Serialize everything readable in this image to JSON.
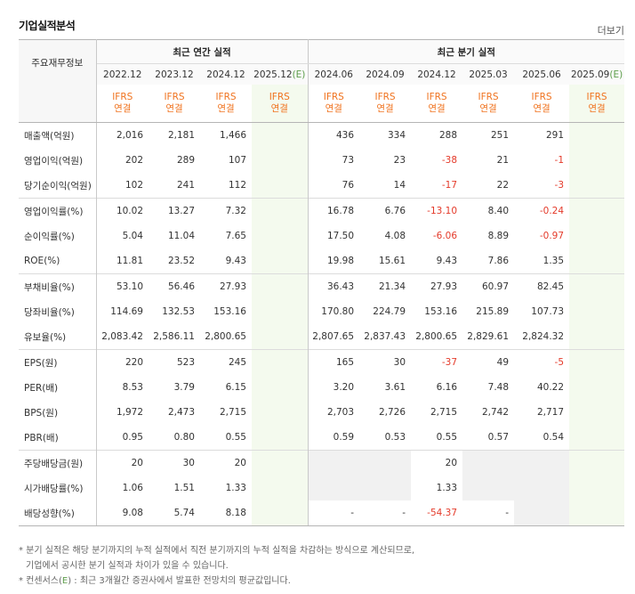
{
  "title": "기업실적분석",
  "more_link": "더보기",
  "header": {
    "row_label": "주요재무정보",
    "annual_group": "최근 연간 실적",
    "quarter_group": "최근 분기 실적",
    "annual_periods": [
      "2022.12",
      "2023.12",
      "2024.12",
      "2025.12(E)"
    ],
    "quarter_periods": [
      "2024.06",
      "2024.09",
      "2024.12",
      "2025.03",
      "2025.06",
      "2025.09(E)"
    ],
    "ifrs_line1": "IFRS",
    "ifrs_line2": "연결"
  },
  "rows": [
    {
      "label": "매출액(억원)",
      "values": [
        "2,016",
        "2,181",
        "1,466",
        "",
        "436",
        "334",
        "288",
        "251",
        "291",
        ""
      ]
    },
    {
      "label": "영업이익(억원)",
      "values": [
        "202",
        "289",
        "107",
        "",
        "73",
        "23",
        "-38",
        "21",
        "-1",
        ""
      ]
    },
    {
      "label": "당기순이익(억원)",
      "values": [
        "102",
        "241",
        "112",
        "",
        "76",
        "14",
        "-17",
        "22",
        "-3",
        ""
      ]
    },
    {
      "label": "영업이익률(%)",
      "values": [
        "10.02",
        "13.27",
        "7.32",
        "",
        "16.78",
        "6.76",
        "-13.10",
        "8.40",
        "-0.24",
        ""
      ]
    },
    {
      "label": "순이익률(%)",
      "values": [
        "5.04",
        "11.04",
        "7.65",
        "",
        "17.50",
        "4.08",
        "-6.06",
        "8.89",
        "-0.97",
        ""
      ]
    },
    {
      "label": "ROE(%)",
      "values": [
        "11.81",
        "23.52",
        "9.43",
        "",
        "19.98",
        "15.61",
        "9.43",
        "7.86",
        "1.35",
        ""
      ]
    },
    {
      "label": "부채비율(%)",
      "values": [
        "53.10",
        "56.46",
        "27.93",
        "",
        "36.43",
        "21.34",
        "27.93",
        "60.97",
        "82.45",
        ""
      ]
    },
    {
      "label": "당좌비율(%)",
      "values": [
        "114.69",
        "132.53",
        "153.16",
        "",
        "170.80",
        "224.79",
        "153.16",
        "215.89",
        "107.73",
        ""
      ]
    },
    {
      "label": "유보율(%)",
      "values": [
        "2,083.42",
        "2,586.11",
        "2,800.65",
        "",
        "2,807.65",
        "2,837.43",
        "2,800.65",
        "2,829.61",
        "2,824.32",
        ""
      ]
    },
    {
      "label": "EPS(원)",
      "values": [
        "220",
        "523",
        "245",
        "",
        "165",
        "30",
        "-37",
        "49",
        "-5",
        ""
      ]
    },
    {
      "label": "PER(배)",
      "values": [
        "8.53",
        "3.79",
        "6.15",
        "",
        "3.20",
        "3.61",
        "6.16",
        "7.48",
        "40.22",
        ""
      ]
    },
    {
      "label": "BPS(원)",
      "values": [
        "1,972",
        "2,473",
        "2,715",
        "",
        "2,703",
        "2,726",
        "2,715",
        "2,742",
        "2,717",
        ""
      ]
    },
    {
      "label": "PBR(배)",
      "values": [
        "0.95",
        "0.80",
        "0.55",
        "",
        "0.59",
        "0.53",
        "0.55",
        "0.57",
        "0.54",
        ""
      ]
    },
    {
      "label": "주당배당금(원)",
      "values": [
        "20",
        "30",
        "20",
        "",
        "",
        "",
        "20",
        "",
        "",
        ""
      ]
    },
    {
      "label": "시가배당률(%)",
      "values": [
        "1.06",
        "1.51",
        "1.33",
        "",
        "",
        "",
        "1.33",
        "",
        "",
        ""
      ]
    },
    {
      "label": "배당성향(%)",
      "values": [
        "9.08",
        "5.74",
        "8.18",
        "",
        "-",
        "-",
        "-54.37",
        "-",
        "",
        ""
      ]
    }
  ],
  "notes": [
    "* 분기 실적은 해당 분기까지의 누적 실적에서 직전 분기까지의 누적 실적을 차감하는 방식으로 계산되므로,",
    "기업에서 공시한 분기 실적과 차이가 있을 수 있습니다.",
    "* 컨센서스(E) : 최근 3개월간 증권사에서 발표한 전망치의 평균값입니다."
  ],
  "colors": {
    "negative": "#e43a2a",
    "ifrs": "#f0731f",
    "estimate": "#5c9d4a",
    "forecast_bg": "#f4faee"
  }
}
